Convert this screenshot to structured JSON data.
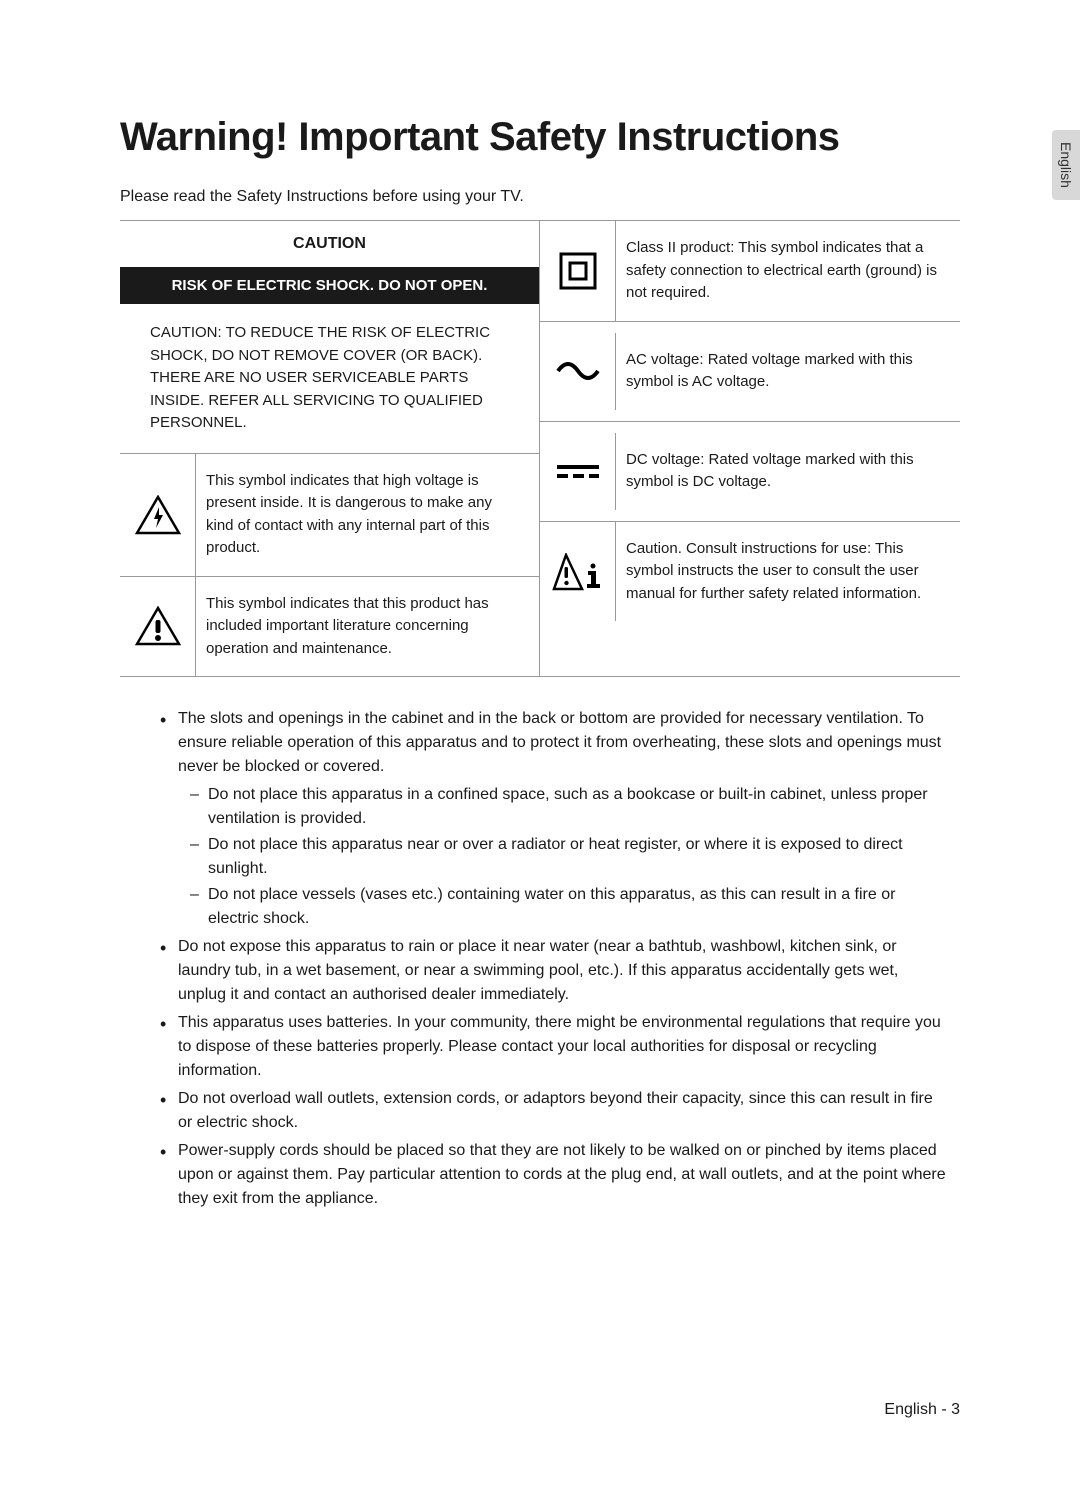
{
  "language_tab": "English",
  "heading": "Warning! Important Safety Instructions",
  "intro": "Please read the Safety Instructions before using your TV.",
  "table": {
    "caution_label": "CAUTION",
    "risk_banner": "RISK OF ELECTRIC SHOCK. DO NOT OPEN.",
    "caution_text": "CAUTION: TO REDUCE THE RISK OF ELECTRIC SHOCK, DO NOT REMOVE COVER (OR BACK). THERE ARE NO USER SERVICEABLE PARTS INSIDE. REFER ALL SERVICING TO QUALIFIED PERSONNEL.",
    "left_rows": [
      {
        "icon": "voltage-triangle",
        "text": "This symbol indicates that high voltage is present inside. It is dangerous to make any kind of contact with any internal part of this product."
      },
      {
        "icon": "exclamation-triangle",
        "text": "This symbol indicates that this product has included important literature concerning operation and maintenance."
      }
    ],
    "right_rows": [
      {
        "icon": "class-ii-square",
        "text": "Class II product: This symbol indicates that a safety connection to electrical earth (ground) is not required."
      },
      {
        "icon": "ac-wave",
        "text": "AC voltage: Rated voltage marked with this symbol is AC voltage."
      },
      {
        "icon": "dc-dashes",
        "text": "DC voltage: Rated voltage marked with this symbol is DC voltage."
      },
      {
        "icon": "info-triangle",
        "text": "Caution. Consult instructions for use: This symbol instructs the user to consult the user manual for further safety related information."
      }
    ]
  },
  "bullets": [
    {
      "text": "The slots and openings in the cabinet and in the back or bottom are provided for necessary ventilation. To ensure reliable operation of this apparatus and to protect it from overheating, these slots and openings must never be blocked or covered.",
      "sub": [
        "Do not place this apparatus in a confined space, such as a bookcase or built-in cabinet, unless proper ventilation is provided.",
        "Do not place this apparatus near or over a radiator or heat register, or where it is exposed to direct sunlight.",
        "Do not place vessels (vases etc.) containing water on this apparatus, as this can result in a fire or electric shock."
      ]
    },
    {
      "text": "Do not expose this apparatus to rain or place it near water (near a bathtub, washbowl, kitchen sink, or laundry tub, in a wet basement, or near a swimming pool, etc.). If this apparatus accidentally gets wet, unplug it and contact an authorised dealer immediately."
    },
    {
      "text": "This apparatus uses batteries. In your community, there might be environmental regulations that require you to dispose of these batteries properly. Please contact your local authorities for disposal or recycling information."
    },
    {
      "text": "Do not overload wall outlets, extension cords, or adaptors beyond their capacity, since this can result in fire or electric shock."
    },
    {
      "text": "Power-supply cords should be placed so that they are not likely to be walked on or pinched by items placed upon or against them. Pay particular attention to cords at the plug end, at wall outlets, and at the point where they exit from the appliance."
    }
  ],
  "footer": "English - 3"
}
